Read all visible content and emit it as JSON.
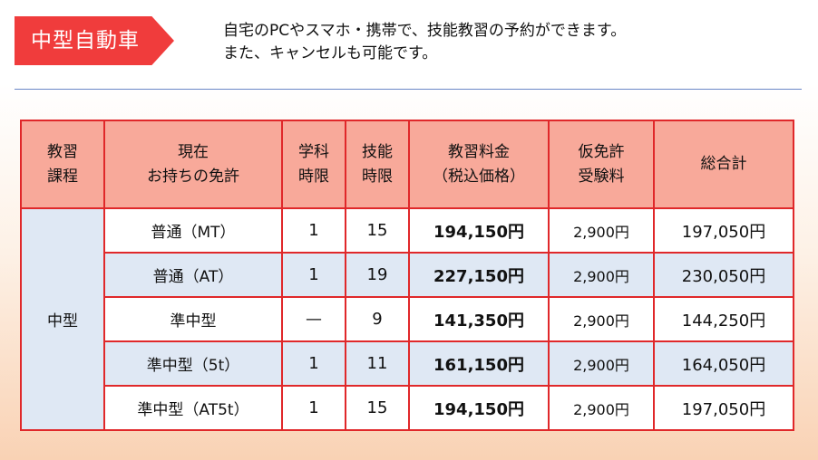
{
  "badge": "中型自動車",
  "intro": {
    "line1": "自宅のPCやスマホ・携帯で、技能教習の予約ができます。",
    "line2": "また、キャンセルも可能です。"
  },
  "table": {
    "headers": {
      "course": [
        "教習",
        "課程"
      ],
      "license": [
        "現在",
        "お持ちの免許"
      ],
      "academic": [
        "学科",
        "時限"
      ],
      "skill": [
        "技能",
        "時限"
      ],
      "price": [
        "教習料金",
        "（税込価格）"
      ],
      "provisional_fee": [
        "仮免許",
        "受験料"
      ],
      "total": [
        "総合計"
      ]
    },
    "course_label": "中型",
    "rows": [
      {
        "license": "普通（MT）",
        "academic": "1",
        "skill": "15",
        "price": "194,150円",
        "fee": "2,900円",
        "total": "197,050円"
      },
      {
        "license": "普通（AT）",
        "academic": "1",
        "skill": "19",
        "price": "227,150円",
        "fee": "2,900円",
        "total": "230,050円"
      },
      {
        "license": "準中型",
        "academic": "—",
        "skill": "9",
        "price": "141,350円",
        "fee": "2,900円",
        "total": "144,250円"
      },
      {
        "license": "準中型（5t）",
        "academic": "1",
        "skill": "11",
        "price": "161,150円",
        "fee": "2,900円",
        "total": "164,050円"
      },
      {
        "license": "準中型（AT5t）",
        "academic": "1",
        "skill": "15",
        "price": "194,150円",
        "fee": "2,900円",
        "total": "197,050円"
      }
    ]
  }
}
